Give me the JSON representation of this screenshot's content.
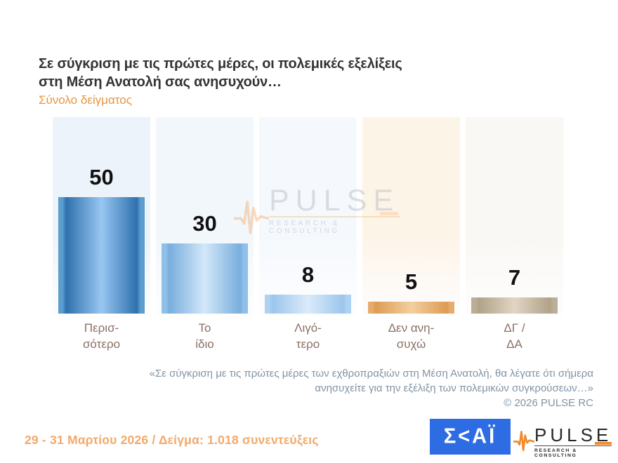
{
  "header": {
    "title_line1": "Σε σύγκριση με τις πρώτες μέρες, οι πολεμικές εξελίξεις",
    "title_line2": "στη Μέση Ανατολή σας ανησυχούν…",
    "subtitle": "Σύνολο δείγματος"
  },
  "chart_data": {
    "type": "bar",
    "title": "Σε σύγκριση με τις πρώτες μέρες, οι πολεμικές εξελίξεις στη Μέση Ανατολή σας ανησυχούν…",
    "subtitle": "Σύνολο δείγματος",
    "categories": [
      "Περισ-\nσότερο",
      "Το\nίδιο",
      "Λιγό-\nτερο",
      "Δεν ανη-\nσυχώ",
      "ΔΓ /\nΔΑ"
    ],
    "values": [
      50,
      30,
      8,
      5,
      7
    ],
    "unit": "percent",
    "ylim": [
      0,
      85
    ],
    "grid": false,
    "legend": "none",
    "value_labels_shown": true,
    "bar_styles": [
      {
        "edge": "#5B9DCD",
        "dark": "#2F71AE",
        "light": "#98C6F1",
        "panel": "#EDF3FA"
      },
      {
        "edge": "#8FC0E8",
        "dark": "#79AEDD",
        "light": "#D3E7F9",
        "panel": "#F2F7FC"
      },
      {
        "edge": "#AED2F1",
        "dark": "#9CC6EC",
        "light": "#DAEBFA",
        "panel": "#F5F9FD"
      },
      {
        "edge": "#E6AC6D",
        "dark": "#DD9C55",
        "light": "#F3CF9F",
        "panel": "#FDF4E8"
      },
      {
        "edge": "#BCAE96",
        "dark": "#B1A289",
        "light": "#E0D6C3",
        "panel": "#FAF8F4"
      }
    ]
  },
  "watermark": {
    "brand": "PULSE",
    "tagline": "RESEARCH & CONSULTING",
    "waveform_icon": "pulse-waveform-icon"
  },
  "footnote": {
    "line1": "«Σε σύγκριση με τις πρώτες μέρες των εχθροπραξιών στη Μέση Ανατολή, θα λέγατε ότι σήμερα",
    "line2": "ανησυχείτε για την εξέλιξη των πολεμικών συγκρούσεων…»",
    "copyright": "©  2026  PULSE RC"
  },
  "footer": {
    "date_sample": "29 - 31  Μαρτίου 2026  /  Δείγμα:  1.018 συνεντεύξεις",
    "skai_logo_text": "Σ<ΑΪ",
    "pulse_logo_brand": "PULSE",
    "pulse_logo_tagline": "RESEARCH & CONSULTING"
  },
  "colors": {
    "accent_orange": "#E8953F",
    "footer_orange": "#F2A96B",
    "category_brown": "#8A7065",
    "footnote_slate": "#8193A5",
    "skai_blue": "#2E6CE4",
    "title_dark": "#343434",
    "waveform_orange": "#F08A2C",
    "value_label_black": "#111111"
  }
}
